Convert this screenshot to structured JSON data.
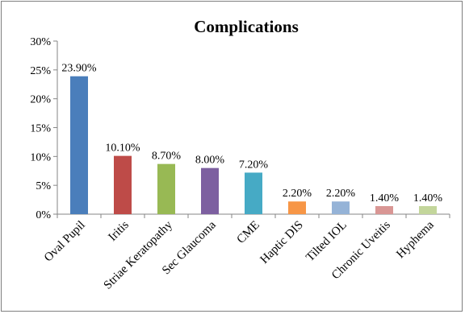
{
  "chart_data": {
    "type": "bar",
    "title": "Complications",
    "xlabel": "",
    "ylabel": "",
    "ylim": [
      0,
      30
    ],
    "yticks": [
      "0%",
      "5%",
      "10%",
      "15%",
      "20%",
      "25%",
      "30%"
    ],
    "grid": false,
    "categories": [
      "Oval Pupil",
      "Iritis",
      "Striae Keratopathy",
      "Sec Glaucoma",
      "CME",
      "Haptic DIS",
      "Tilted IOL",
      "Chronic Uveitis",
      "Hyphema"
    ],
    "values": [
      23.9,
      10.1,
      8.7,
      8.0,
      7.2,
      2.2,
      2.2,
      1.4,
      1.4
    ],
    "data_labels": [
      "23.90%",
      "10.10%",
      "8.70%",
      "8.00%",
      "7.20%",
      "2.20%",
      "2.20%",
      "1.40%",
      "1.40%"
    ],
    "colors": [
      "#4a7ebb",
      "#be4b48",
      "#98b954",
      "#7d60a0",
      "#46aac5",
      "#f79646",
      "#95b3d7",
      "#d99694",
      "#c3d69b"
    ]
  }
}
